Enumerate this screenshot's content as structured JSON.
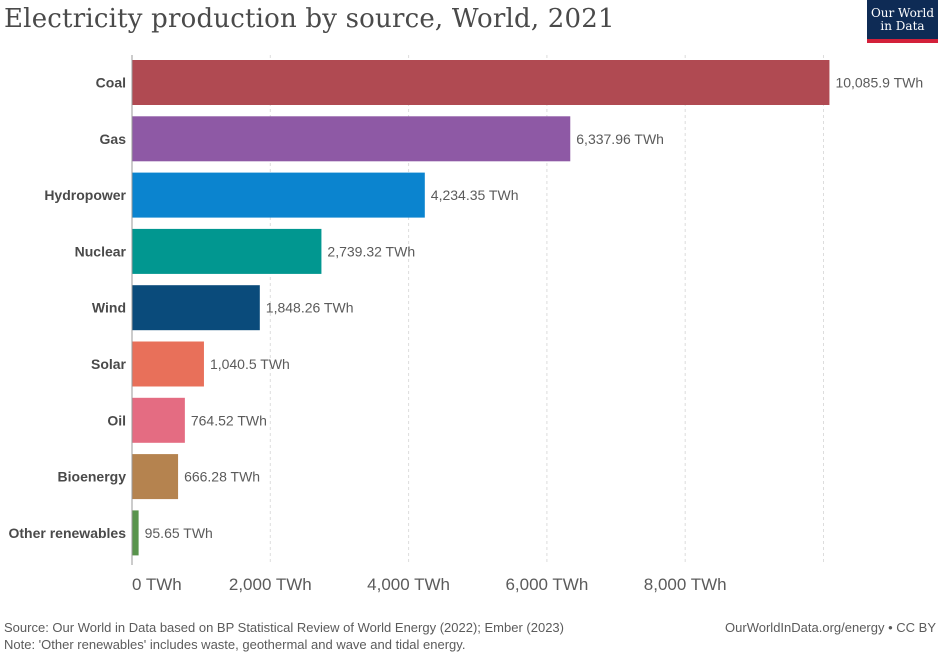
{
  "chart_data": {
    "type": "bar",
    "orientation": "horizontal",
    "title": "Electricity production by source, World, 2021",
    "categories": [
      "Coal",
      "Gas",
      "Hydropower",
      "Nuclear",
      "Wind",
      "Solar",
      "Oil",
      "Bioenergy",
      "Other renewables"
    ],
    "values": [
      10085.9,
      6337.96,
      4234.35,
      2739.32,
      1848.26,
      1040.5,
      764.52,
      666.28,
      95.65
    ],
    "value_labels": [
      "10,085.9 TWh",
      "6,337.96 TWh",
      "4,234.35 TWh",
      "2,739.32 TWh",
      "1,848.26 TWh",
      "1,040.5 TWh",
      "764.52 TWh",
      "666.28 TWh",
      "95.65 TWh"
    ],
    "colors": [
      "#b04a52",
      "#8e59a5",
      "#0b84cf",
      "#019790",
      "#0a4b7b",
      "#e8705a",
      "#e46c82",
      "#b5834f",
      "#59944d"
    ],
    "xticks": [
      0,
      2000,
      4000,
      6000,
      8000
    ],
    "xtick_labels": [
      "0 TWh",
      "2,000 TWh",
      "4,000 TWh",
      "6,000 TWh",
      "8,000 TWh"
    ],
    "xlim": [
      0,
      10000
    ],
    "grid": true,
    "unit": "TWh"
  },
  "logo": {
    "line1": "Our World",
    "line2": "in Data",
    "bg": "#0e2b55",
    "accent": "#d3203a"
  },
  "footer": {
    "source": "Source: Our World in Data based on BP Statistical Review of World Energy (2022); Ember (2023)",
    "note": "Note: 'Other renewables' includes waste, geothermal and wave and tidal energy.",
    "link": "OurWorldInData.org/energy • CC BY"
  }
}
